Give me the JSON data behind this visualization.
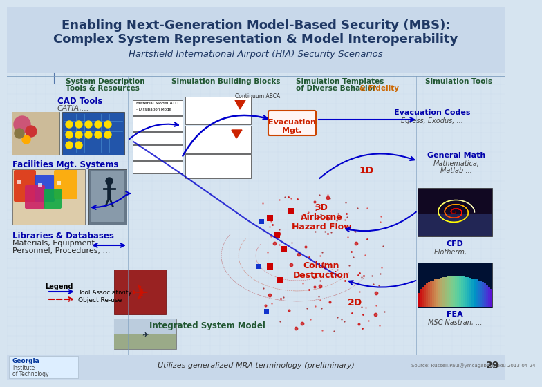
{
  "title_line1": "Enabling Next-Generation Model-Based Security (MBS):",
  "title_line2": "Complex System Representation & Model Interoperability",
  "subtitle": "Hartsfield International Airport (HIA) Security Scenarios",
  "bg_color": "#d6e4f0",
  "header_bg": "#c8d8ea",
  "title_color": "#1f3864",
  "green_color": "#215732",
  "blue_color": "#0000aa",
  "orange_color": "#FF6600",
  "red_color": "#CC0000",
  "footer_text": "Utilizes generalized MRA terminology (preliminary)",
  "footer_source": "Source: Russell.Paul@ymcagabach.edu 2013-04-24",
  "page_num": "29",
  "col1_header_line1": "System Description",
  "col1_header_line2": "Tools & Resources",
  "col2_header": "Simulation Building Blocks",
  "col3_header_line1": "Simulation Templates",
  "col3_header_line2": "of Diverse Behavior",
  "col3_fidelity": "& Fidelity",
  "col4_header": "Simulation Tools",
  "row1_label": "CAD Tools",
  "row1_sub": "CATIA,...",
  "row2_label": "Facilities Mgt. Systems",
  "row3_label": "Libraries & Databases",
  "row3_sub1": "Materials, Equipment,",
  "row3_sub2": "Personnel, Procedures, ...",
  "evac_label": "Evacuation\nMgt.",
  "label_1D": "1D",
  "label_3D": "3D",
  "airborne_label": "Airborne\nHazard Flow",
  "column_label": "Column\nDestruction",
  "label_2D": "2D",
  "integrated_label": "Integrated System Model",
  "right1_label": "Evacuation Codes",
  "right1_sub": "Egress, Exodus, ...",
  "right2_label": "General Math",
  "right2_sub1": "Mathematica,",
  "right2_sub2": "Matlab ...",
  "right3_label": "CFD",
  "right3_sub": "Flotherm, ...",
  "right4_label": "FEA",
  "right4_sub": "MSC Nastran, ...",
  "legend_title": "Legend",
  "legend_tool": "Tool Associativity",
  "legend_obj": "Object Re-use",
  "continuum_label": "Continuum ABCA",
  "material_model": "Material Model ATD",
  "dissipation": "- Dissipation Mode"
}
